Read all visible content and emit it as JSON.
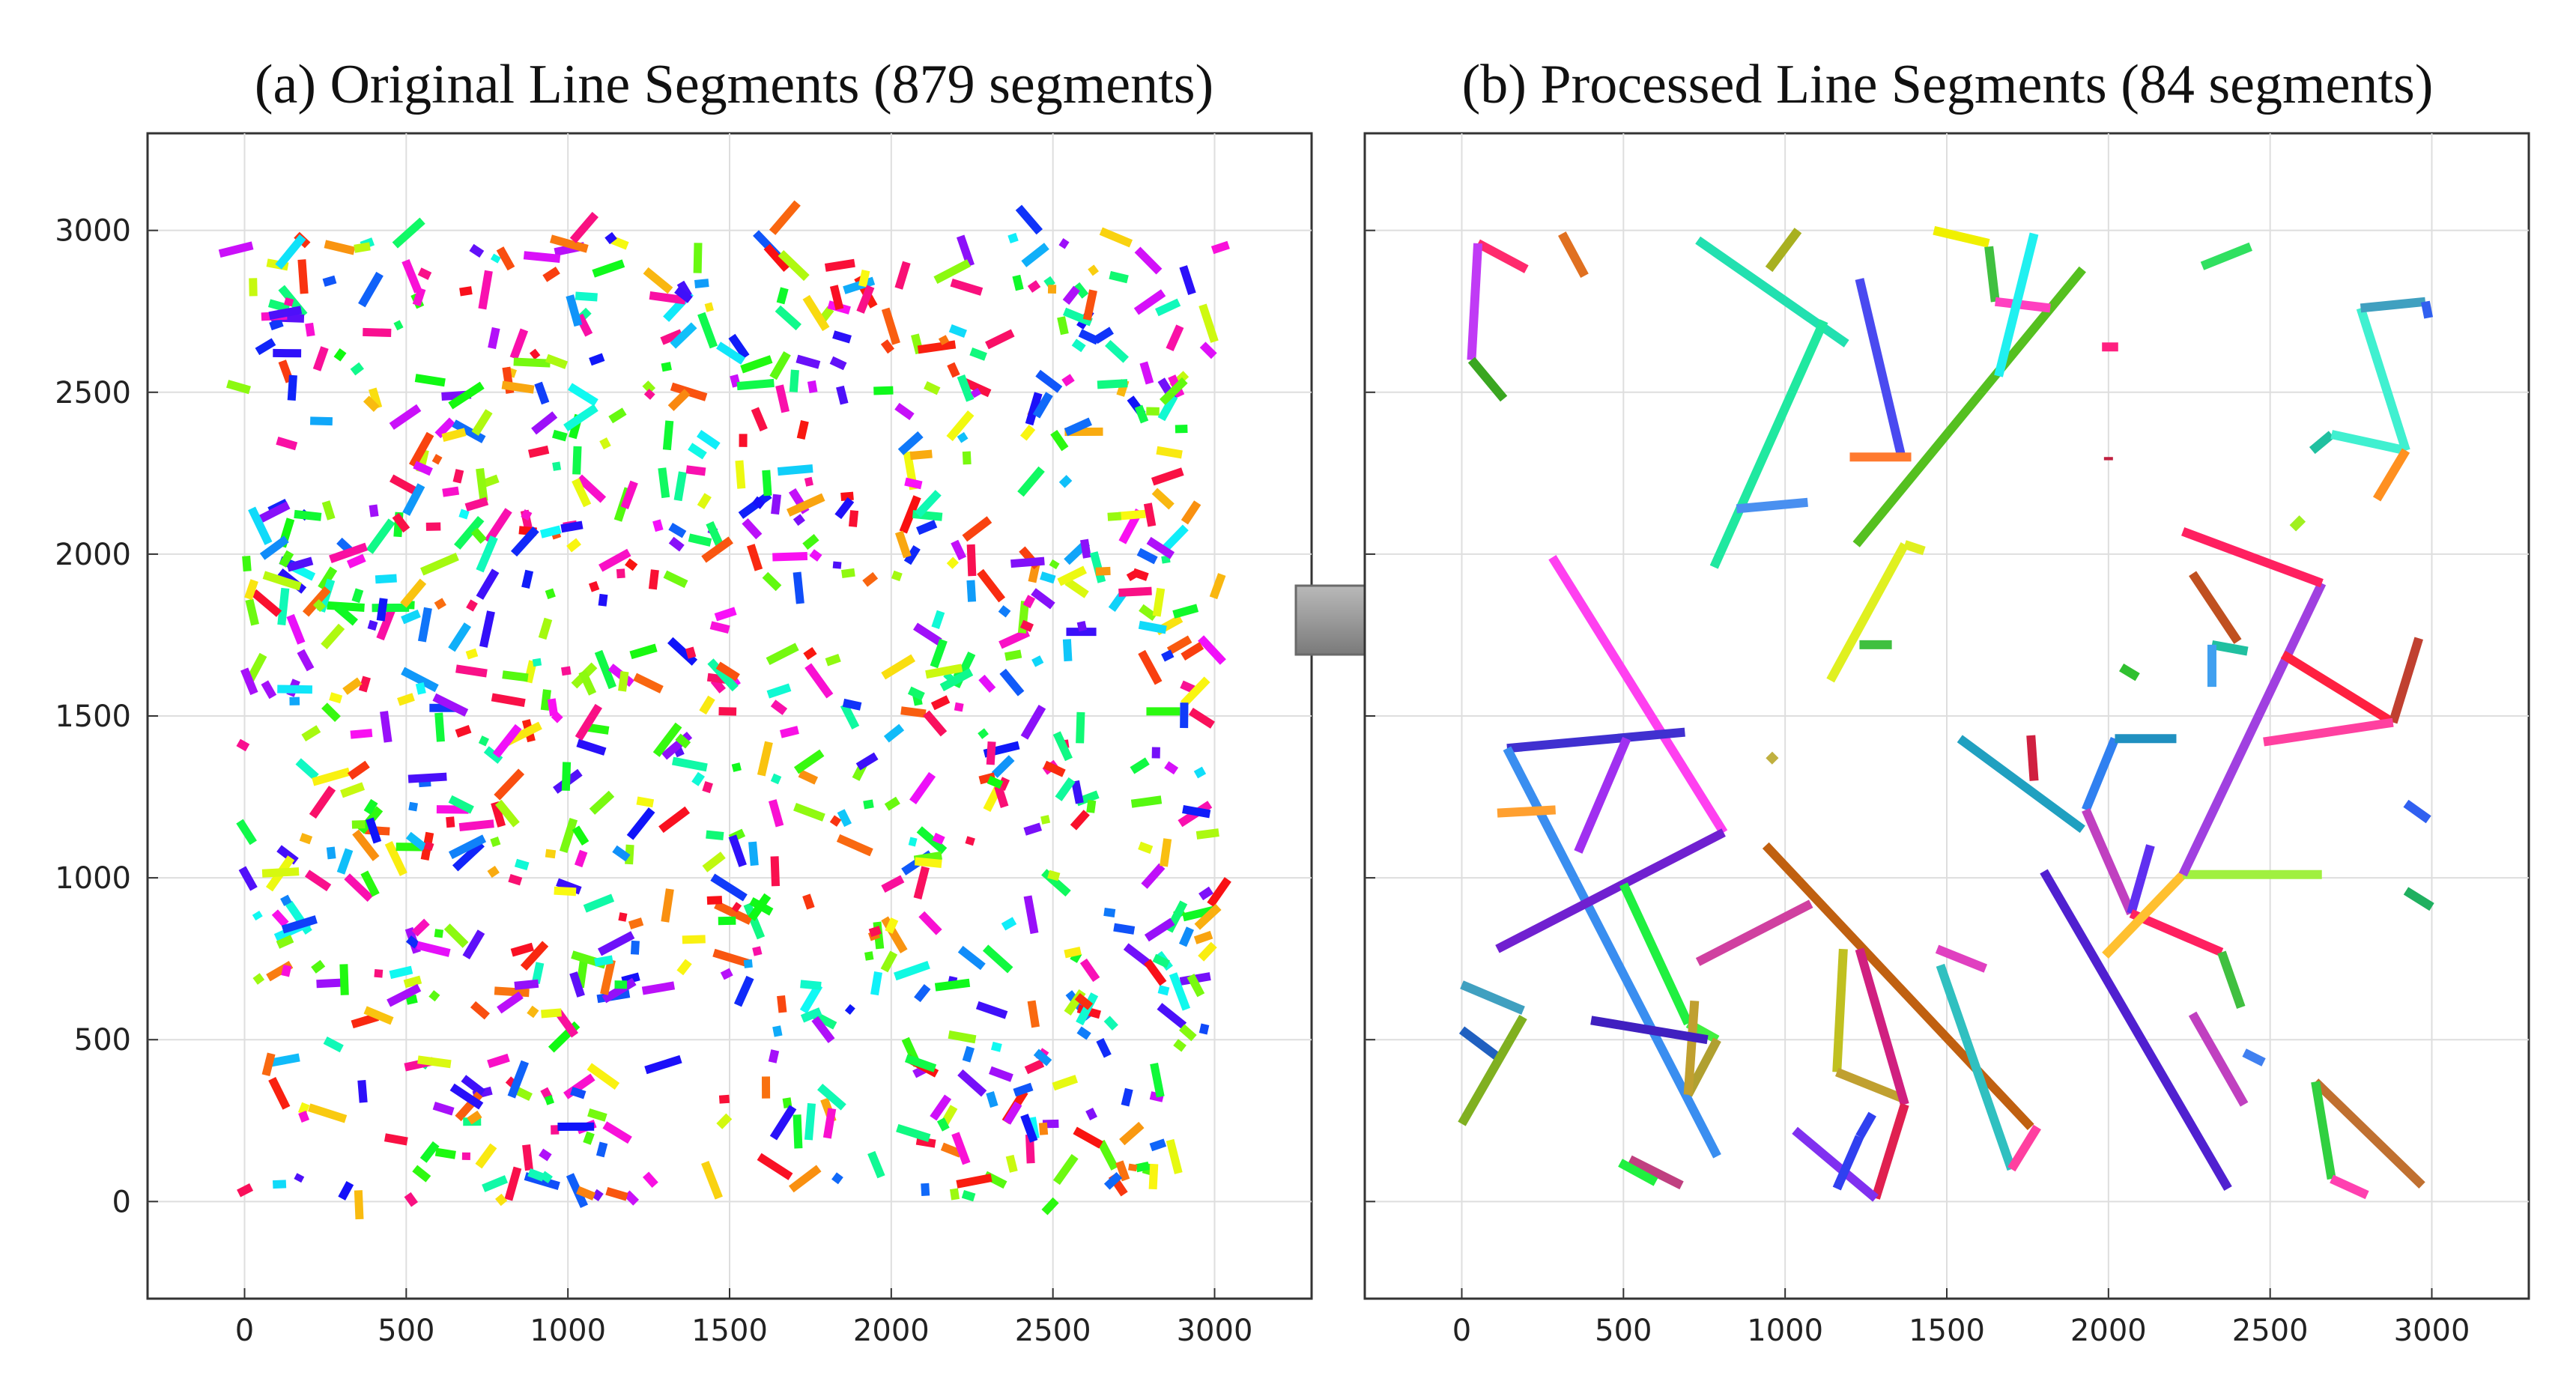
{
  "panels": [
    {
      "title": "(a) Original Line Segments (879 segments)",
      "xlim": [
        -300,
        3300
      ],
      "ylim": [
        -300,
        3300
      ],
      "xticks": [
        0,
        500,
        1000,
        1500,
        2000,
        2500,
        3000
      ],
      "yticks": [
        0,
        500,
        1000,
        1500,
        2000,
        2500,
        3000
      ],
      "show_y_tick_labels": true,
      "grid": true
    },
    {
      "title": "(b) Processed Line Segments (84 segments)",
      "xlim": [
        -300,
        3300
      ],
      "ylim": [
        -300,
        3300
      ],
      "xticks": [
        0,
        500,
        1000,
        1500,
        2000,
        2500,
        3000
      ],
      "yticks": [
        0,
        500,
        1000,
        1500,
        2000,
        2500,
        3000
      ],
      "show_y_tick_labels": false,
      "grid": true
    }
  ],
  "arrow": {
    "direction": "right",
    "color": "#8f8f8f"
  },
  "chart_data": [
    {
      "type": "scatter",
      "title": "(a) Original Line Segments (879 segments)",
      "xlim": [
        -300,
        3300
      ],
      "ylim": [
        -300,
        3300
      ],
      "segment_count": 879,
      "segments_random_seed": 17,
      "segment_length_range": [
        20,
        120
      ],
      "x_range": [
        0,
        3000
      ],
      "y_range": [
        0,
        3000
      ]
    },
    {
      "type": "line",
      "title": "(b) Processed Line Segments (84 segments)",
      "xlim": [
        -300,
        3300
      ],
      "ylim": [
        -300,
        3300
      ],
      "segments": [
        [
          50,
          2960,
          200,
          2880,
          "#ff2a6d"
        ],
        [
          50,
          2960,
          30,
          2600,
          "#c03af5"
        ],
        [
          30,
          2600,
          130,
          2480,
          "#3aa620"
        ],
        [
          310,
          2990,
          380,
          2860,
          "#e07020"
        ],
        [
          730,
          2970,
          1190,
          2650,
          "#22e0b0"
        ],
        [
          950,
          2880,
          1040,
          3000,
          "#a8b020"
        ],
        [
          780,
          1960,
          1120,
          2720,
          "#20e8a0"
        ],
        [
          850,
          2140,
          1070,
          2160,
          "#4a90f0"
        ],
        [
          1230,
          2850,
          1360,
          2300,
          "#4a4af0"
        ],
        [
          1200,
          2300,
          1390,
          2300,
          "#ff7a30"
        ],
        [
          1220,
          2030,
          1920,
          2880,
          "#55c020"
        ],
        [
          1460,
          3000,
          1630,
          2960,
          "#f0f000"
        ],
        [
          1630,
          2950,
          1650,
          2780,
          "#40c040"
        ],
        [
          1650,
          2780,
          1820,
          2760,
          "#ff40c0"
        ],
        [
          1660,
          2550,
          1770,
          2990,
          "#20f0f0"
        ],
        [
          1980,
          2640,
          2030,
          2640,
          "#ff2080"
        ],
        [
          2000,
          2300,
          2000,
          2290,
          "#c02040"
        ],
        [
          2290,
          2890,
          2440,
          2950,
          "#30e060"
        ],
        [
          2630,
          2320,
          2690,
          2370,
          "#20c0a0"
        ],
        [
          2690,
          2370,
          2920,
          2320,
          "#40f0d0"
        ],
        [
          2920,
          2320,
          2780,
          2760,
          "#40f0d0"
        ],
        [
          2780,
          2760,
          2980,
          2780,
          "#40a0c0"
        ],
        [
          2980,
          2780,
          2990,
          2730,
          "#3060f0"
        ],
        [
          2920,
          2320,
          2830,
          2170,
          "#ff9020"
        ],
        [
          2570,
          2080,
          2600,
          2110,
          "#a0f020"
        ],
        [
          280,
          1990,
          810,
          1140,
          "#ff40f0"
        ],
        [
          1140,
          1610,
          1370,
          2030,
          "#e0f020"
        ],
        [
          1370,
          2030,
          1430,
          2010,
          "#e0f020"
        ],
        [
          1230,
          1720,
          1330,
          1720,
          "#40c040"
        ],
        [
          140,
          1400,
          690,
          1450,
          "#4030d0"
        ],
        [
          140,
          1400,
          790,
          140,
          "#3a8ef0"
        ],
        [
          360,
          1080,
          510,
          1430,
          "#a030f0"
        ],
        [
          110,
          1200,
          290,
          1210,
          "#ffa030"
        ],
        [
          110,
          780,
          810,
          1140,
          "#7020d0"
        ],
        [
          950,
          1360,
          970,
          1380,
          "#c0b040"
        ],
        [
          500,
          980,
          700,
          550,
          "#20f040"
        ],
        [
          700,
          550,
          790,
          500,
          "#40f040"
        ],
        [
          790,
          500,
          700,
          330,
          "#b0a030"
        ],
        [
          700,
          330,
          720,
          620,
          "#c0a030"
        ],
        [
          400,
          560,
          760,
          500,
          "#4020c0"
        ],
        [
          520,
          130,
          680,
          50,
          "#c04080"
        ],
        [
          730,
          740,
          1080,
          920,
          "#d040a0"
        ],
        [
          940,
          1100,
          1760,
          230,
          "#c06010"
        ],
        [
          1180,
          780,
          1160,
          400,
          "#c0c020"
        ],
        [
          1160,
          400,
          1360,
          320,
          "#c0a030"
        ],
        [
          1230,
          780,
          1370,
          300,
          "#d02080"
        ],
        [
          1370,
          300,
          1280,
          10,
          "#e02050"
        ],
        [
          1280,
          10,
          1030,
          220,
          "#8030f0"
        ],
        [
          1230,
          200,
          1160,
          40,
          "#3040f0"
        ],
        [
          1230,
          200,
          1270,
          270,
          "#3040f0"
        ],
        [
          1470,
          780,
          1620,
          720,
          "#e040c0"
        ],
        [
          1480,
          730,
          1700,
          100,
          "#30c0c0"
        ],
        [
          1700,
          100,
          1780,
          230,
          "#ff40a0"
        ],
        [
          1540,
          1430,
          1920,
          1150,
          "#20a0c0"
        ],
        [
          1760,
          1440,
          1770,
          1300,
          "#d02040"
        ],
        [
          1800,
          1020,
          2370,
          40,
          "#5020d0"
        ],
        [
          1930,
          1210,
          2020,
          1430,
          "#3080f0"
        ],
        [
          2020,
          1430,
          2210,
          1430,
          "#2090c0"
        ],
        [
          1930,
          1210,
          2070,
          890,
          "#c040c0"
        ],
        [
          2070,
          890,
          2130,
          1100,
          "#6030f0"
        ],
        [
          2070,
          890,
          2350,
          770,
          "#ff2060"
        ],
        [
          2350,
          770,
          2410,
          600,
          "#40c040"
        ],
        [
          1990,
          760,
          2230,
          1010,
          "#ffc030"
        ],
        [
          2230,
          1010,
          2660,
          1010,
          "#a0f040"
        ],
        [
          2230,
          1010,
          2660,
          1910,
          "#a040e0"
        ],
        [
          2230,
          2070,
          2660,
          1910,
          "#ff2060"
        ],
        [
          2260,
          1940,
          2400,
          1730,
          "#c05020"
        ],
        [
          2320,
          1720,
          2430,
          1700,
          "#20c0a0"
        ],
        [
          2320,
          1720,
          2320,
          1590,
          "#40a0f0"
        ],
        [
          2040,
          1650,
          2090,
          1620,
          "#30c030"
        ],
        [
          2540,
          1690,
          2880,
          1480,
          "#ff2040"
        ],
        [
          2880,
          1480,
          2960,
          1740,
          "#c04030"
        ],
        [
          2480,
          1420,
          2880,
          1480,
          "#ff40a0"
        ],
        [
          2920,
          1230,
          2990,
          1180,
          "#3060f0"
        ],
        [
          2920,
          960,
          3000,
          910,
          "#20b060"
        ],
        [
          2260,
          580,
          2420,
          300,
          "#c040c0"
        ],
        [
          2420,
          460,
          2480,
          430,
          "#4080f0"
        ],
        [
          2640,
          370,
          2970,
          50,
          "#c07030"
        ],
        [
          2640,
          370,
          2690,
          70,
          "#30d040"
        ],
        [
          2690,
          70,
          2800,
          20,
          "#ff40b0"
        ],
        [
          0,
          670,
          190,
          590,
          "#40a0c0"
        ],
        [
          0,
          530,
          120,
          440,
          "#2060c0"
        ],
        [
          0,
          240,
          190,
          570,
          "#80b020"
        ],
        [
          490,
          120,
          600,
          60,
          "#20f040"
        ]
      ]
    }
  ]
}
